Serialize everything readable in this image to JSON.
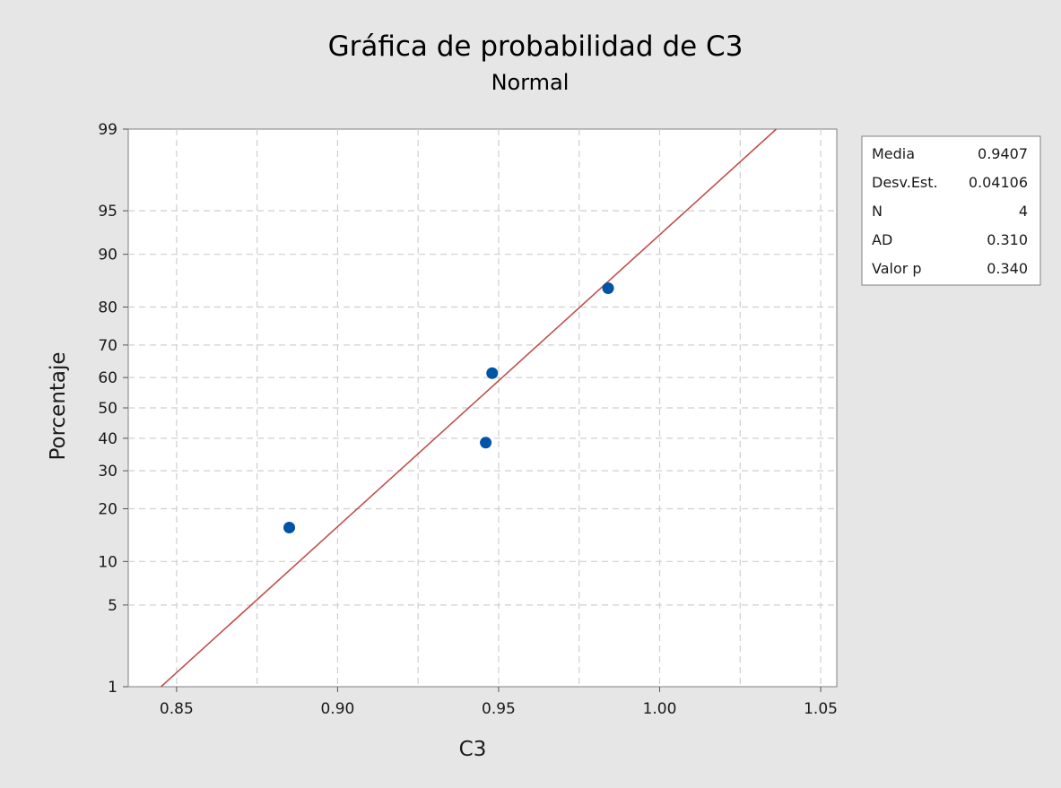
{
  "chart_data": {
    "type": "scatter",
    "title": "Gráfica de probabilidad de C3",
    "subtitle": "Normal",
    "xlabel": "C3",
    "ylabel": "Porcentaje",
    "xlim": [
      0.835,
      1.055
    ],
    "x_ticks": [
      "0.85",
      "0.90",
      "0.95",
      "1.00",
      "1.05"
    ],
    "y_ticks": [
      "1",
      "5",
      "10",
      "20",
      "30",
      "40",
      "50",
      "60",
      "70",
      "80",
      "90",
      "95",
      "99"
    ],
    "y_scale": "normal-probability",
    "grid": true,
    "points": [
      {
        "x": 0.885,
        "y": 15.9
      },
      {
        "x": 0.946,
        "y": 38.6
      },
      {
        "x": 0.948,
        "y": 61.4
      },
      {
        "x": 0.984,
        "y": 84.1
      }
    ],
    "fit_line": {
      "mean": 0.9407,
      "stdev": 0.04106
    },
    "point_color": "#0054a6",
    "line_color": "#c0504d",
    "legend_position": "right",
    "stats": [
      {
        "label": "Media",
        "value": "0.9407"
      },
      {
        "label": "Desv.Est.",
        "value": "0.04106"
      },
      {
        "label": "N",
        "value": "4"
      },
      {
        "label": "AD",
        "value": "0.310"
      },
      {
        "label": "Valor p",
        "value": "0.340"
      }
    ]
  }
}
